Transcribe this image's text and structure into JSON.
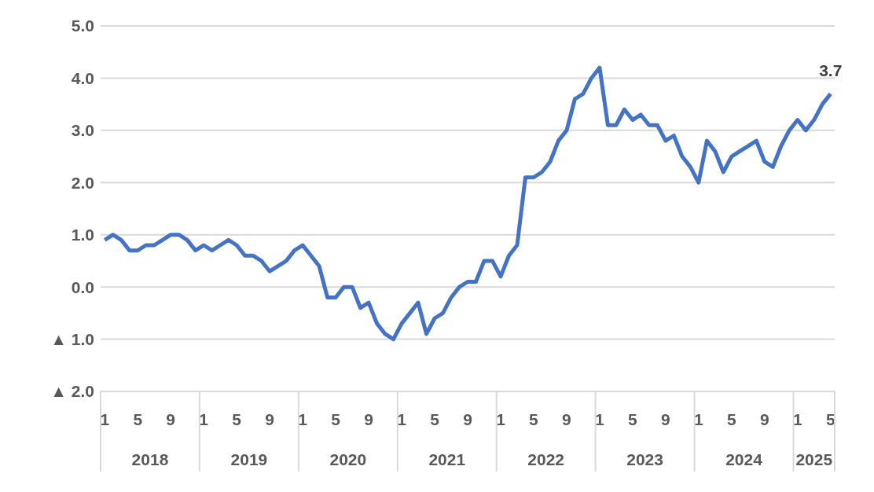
{
  "chart_data": {
    "type": "line",
    "categories": [
      "1",
      null,
      null,
      null,
      "5",
      null,
      null,
      null,
      "9",
      null,
      null,
      null,
      "1",
      null,
      null,
      null,
      "5",
      null,
      null,
      null,
      "9",
      null,
      null,
      null,
      "1",
      null,
      null,
      null,
      "5",
      null,
      null,
      null,
      "9",
      null,
      null,
      null,
      "1",
      null,
      null,
      null,
      "5",
      null,
      null,
      null,
      "9",
      null,
      null,
      null,
      "1",
      null,
      null,
      null,
      "5",
      null,
      null,
      null,
      "9",
      null,
      null,
      null,
      "1",
      null,
      null,
      null,
      "5",
      null,
      null,
      null,
      "9",
      null,
      null,
      null,
      "1",
      null,
      null,
      null,
      "5",
      null,
      null,
      null,
      "9",
      null,
      null,
      null,
      "1",
      null,
      null,
      null,
      "5"
    ],
    "series": [
      {
        "color": "#4472c4",
        "values": [
          0.9,
          1.0,
          0.9,
          0.7,
          0.7,
          0.8,
          0.8,
          0.9,
          1.0,
          1.0,
          0.9,
          0.7,
          0.8,
          0.7,
          0.8,
          0.9,
          0.8,
          0.6,
          0.6,
          0.5,
          0.3,
          0.4,
          0.5,
          0.7,
          0.8,
          0.6,
          0.4,
          -0.2,
          -0.2,
          0.0,
          0.0,
          -0.4,
          -0.3,
          -0.7,
          -0.9,
          -1.0,
          -0.7,
          -0.5,
          -0.3,
          -0.9,
          -0.6,
          -0.5,
          -0.2,
          0.0,
          0.1,
          0.1,
          0.5,
          0.5,
          0.2,
          0.6,
          0.8,
          2.1,
          2.1,
          2.2,
          2.4,
          2.8,
          3.0,
          3.6,
          3.7,
          4.0,
          4.2,
          3.1,
          3.1,
          3.4,
          3.2,
          3.3,
          3.1,
          3.1,
          2.8,
          2.9,
          2.5,
          2.3,
          2.0,
          2.8,
          2.6,
          2.2,
          2.5,
          2.6,
          2.7,
          2.8,
          2.4,
          2.3,
          2.7,
          3.0,
          3.2,
          3.0,
          3.2,
          3.5,
          3.7
        ],
        "value_labels": [
          null,
          null,
          null,
          null,
          null,
          null,
          null,
          null,
          null,
          null,
          null,
          null,
          null,
          null,
          null,
          null,
          null,
          null,
          null,
          null,
          null,
          null,
          null,
          null,
          null,
          null,
          null,
          null,
          null,
          null,
          null,
          null,
          null,
          null,
          null,
          null,
          null,
          null,
          null,
          null,
          null,
          null,
          null,
          null,
          null,
          null,
          null,
          null,
          null,
          null,
          null,
          null,
          null,
          null,
          null,
          null,
          null,
          null,
          null,
          null,
          null,
          null,
          null,
          null,
          null,
          null,
          null,
          null,
          null,
          null,
          null,
          null,
          null,
          null,
          null,
          null,
          null,
          null,
          null,
          null,
          null,
          null,
          null,
          null,
          null,
          null,
          null,
          null,
          "3.7"
        ]
      }
    ],
    "annotations": [
      "2018",
      "2019",
      "2020",
      "2021",
      "2022",
      "2023",
      "2024",
      "2025"
    ],
    "ylim": [
      -2,
      5
    ],
    "yticks": [
      {
        "value": -2,
        "label": "▲ 2.0"
      },
      {
        "value": -1,
        "label": "▲ 1.0"
      },
      {
        "value": 0,
        "label": "0.0"
      },
      {
        "value": 1,
        "label": "1.0"
      },
      {
        "value": 2,
        "label": "2.0"
      },
      {
        "value": 3,
        "label": "3.0"
      },
      {
        "value": 4,
        "label": "4.0"
      },
      {
        "value": 5,
        "label": "5.0"
      }
    ],
    "grid": "y",
    "legend": false,
    "marker": "none",
    "line_style": "solid"
  }
}
